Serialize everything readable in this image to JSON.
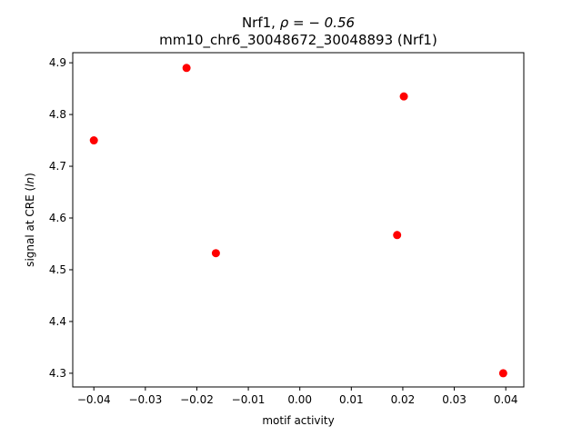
{
  "chart_data": {
    "type": "scatter",
    "title_line1_prefix": "Nrf1, ",
    "title_line1_math": "ρ = − 0.56",
    "title_line2": "mm10_chr6_30048672_30048893 (Nrf1)",
    "xlabel": "motif activity",
    "ylabel_prefix": "signal at CRE (",
    "ylabel_italic": "ln",
    "ylabel_suffix": ")",
    "xlim": [
      -0.0441,
      0.0435
    ],
    "ylim": [
      4.2735,
      4.9195
    ],
    "xticks": [
      -0.04,
      -0.03,
      -0.02,
      -0.01,
      0.0,
      0.01,
      0.02,
      0.03,
      0.04
    ],
    "xtick_labels": [
      "−0.04",
      "−0.03",
      "−0.02",
      "−0.01",
      "0.00",
      "0.01",
      "0.02",
      "0.03",
      "0.04"
    ],
    "yticks": [
      4.3,
      4.4,
      4.5,
      4.6,
      4.7,
      4.8,
      4.9
    ],
    "ytick_labels": [
      "4.3",
      "4.4",
      "4.5",
      "4.6",
      "4.7",
      "4.8",
      "4.9"
    ],
    "grid": false,
    "marker_color": "#ff0000",
    "points": [
      {
        "x": -0.04,
        "y": 4.75
      },
      {
        "x": -0.022,
        "y": 4.89
      },
      {
        "x": -0.0163,
        "y": 4.532
      },
      {
        "x": 0.0189,
        "y": 4.567
      },
      {
        "x": 0.0202,
        "y": 4.835
      },
      {
        "x": 0.0395,
        "y": 4.3
      }
    ]
  }
}
